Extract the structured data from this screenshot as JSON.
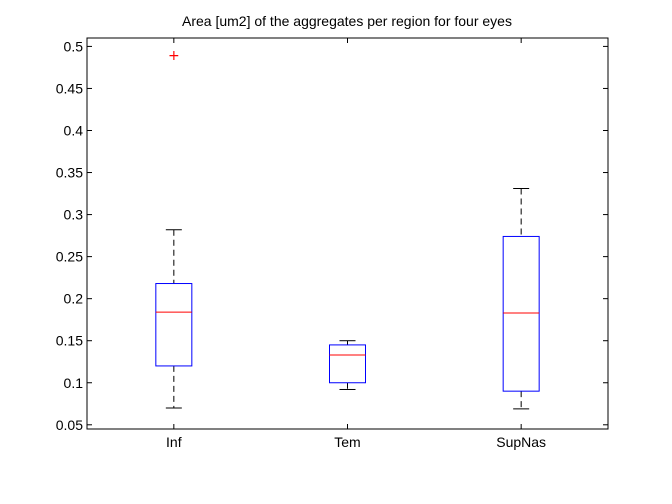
{
  "chart_data": {
    "type": "box",
    "title": "Area [um2] of the aggregates per region for four eyes",
    "xlabel": "",
    "ylabel": "",
    "categories": [
      "Inf",
      "Tem",
      "SupNas"
    ],
    "ylim": [
      0.045,
      0.51
    ],
    "yticks": [
      0.05,
      0.1,
      0.15,
      0.2,
      0.25,
      0.3,
      0.35,
      0.4,
      0.45,
      0.5
    ],
    "ytick_labels": [
      "0.05",
      "0.1",
      "0.15",
      "0.2",
      "0.25",
      "0.3",
      "0.35",
      "0.4",
      "0.45",
      "0.5"
    ],
    "boxes": [
      {
        "category": "Inf",
        "whisker_low": 0.07,
        "q1": 0.12,
        "median": 0.184,
        "q3": 0.218,
        "whisker_high": 0.282,
        "outliers": [
          0.49
        ]
      },
      {
        "category": "Tem",
        "whisker_low": 0.092,
        "q1": 0.1,
        "median": 0.133,
        "q3": 0.145,
        "whisker_high": 0.15,
        "outliers": []
      },
      {
        "category": "SupNas",
        "whisker_low": 0.069,
        "q1": 0.09,
        "median": 0.183,
        "q3": 0.274,
        "whisker_high": 0.331,
        "outliers": []
      }
    ],
    "colors": {
      "box": "#0000ff",
      "median": "#ff0000",
      "whisker": "#000000",
      "outlier": "#ff0000",
      "axes": "#000000"
    },
    "grid": false,
    "legend": "none"
  }
}
